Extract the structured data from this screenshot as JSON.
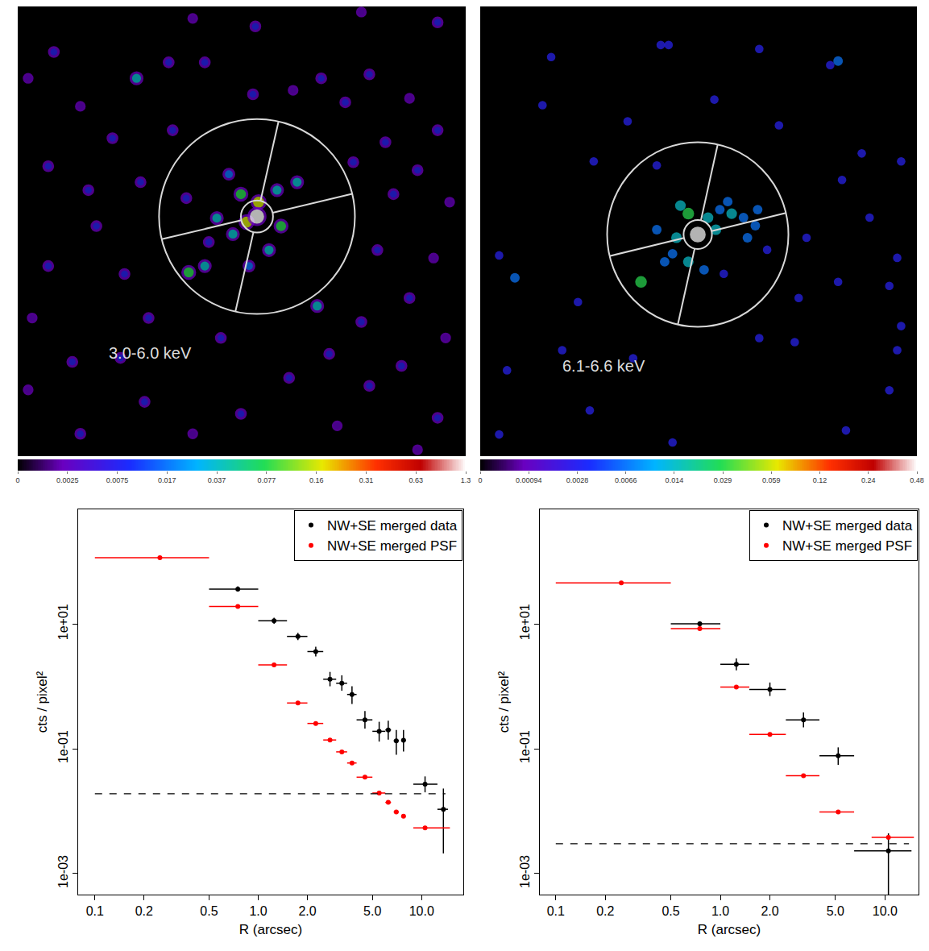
{
  "chart_data": [
    {
      "type": "image",
      "label": "3.0-6.0 keV",
      "marker": "ring",
      "xlim": [
        0,
        558
      ],
      "ylim": [
        563,
        0
      ],
      "tick_labels": false,
      "sources": {
        "x": [
          45,
          218,
          296,
          428,
          523,
          188,
          233,
          78,
          118,
          193,
          13,
          38,
          88,
          153,
          210,
          293,
          343,
          378,
          408,
          438,
          488,
          523,
          458,
          498,
          538,
          468,
          448,
          518,
          488,
          428,
          533,
          478,
          438,
          523,
          398,
          338,
          278,
          218,
          158,
          128,
          68,
          18,
          38,
          98,
          133,
          13,
          78,
          163,
          388,
          498,
          418,
          238,
          253,
          278,
          323,
          328,
          268,
          248,
          313,
          288,
          263,
          348,
          233,
          213,
          373,
          148,
          300,
          285,
          298
        ],
        "y": [
          57,
          15,
          25,
          7,
          20,
          70,
          70,
          125,
          165,
          155,
          90,
          200,
          230,
          220,
          240,
          110,
          105,
          90,
          120,
          85,
          115,
          155,
          170,
          205,
          245,
          235,
          305,
          315,
          365,
          395,
          415,
          450,
          475,
          515,
          525,
          465,
          510,
          535,
          495,
          440,
          445,
          390,
          325,
          275,
          335,
          480,
          535,
          390,
          435,
          555,
          195,
          295,
          415,
          235,
          230,
          275,
          285,
          265,
          305,
          325,
          210,
          220,
          325,
          333,
          375,
          90,
          245,
          270,
          263
        ],
        "values": [
          0.0075,
          0.0025,
          0.0075,
          0.0025,
          0.0075,
          0.0075,
          0.0075,
          0.0025,
          0.0075,
          0.0075,
          0.0025,
          0.0075,
          0.0075,
          0.0075,
          0.0075,
          0.0075,
          0.0025,
          0.0075,
          0.0075,
          0.0075,
          0.0025,
          0.0075,
          0.0075,
          0.0075,
          0.0025,
          0.0075,
          0.0075,
          0.0025,
          0.0075,
          0.0075,
          0.0025,
          0.0075,
          0.0075,
          0.0075,
          0.0025,
          0.0075,
          0.0075,
          0.0025,
          0.0075,
          0.0075,
          0.0075,
          0.0025,
          0.0075,
          0.0075,
          0.0075,
          0.0025,
          0.0075,
          0.0075,
          0.0075,
          0.0025,
          0.0075,
          0.0075,
          0.0075,
          0.077,
          0.037,
          0.077,
          0.037,
          0.037,
          0.037,
          0.017,
          0.017,
          0.037,
          0.037,
          0.077,
          0.037,
          0.037,
          0.16,
          0.16,
          1.3
        ]
      },
      "colorbar": {
        "ticks": [
          0,
          0.0025,
          0.0075,
          0.017,
          0.037,
          0.077,
          0.16,
          0.31,
          0.63,
          1.3
        ]
      }
    },
    {
      "type": "image",
      "label": "6.1-6.6 keV",
      "marker": "circle",
      "xlim": [
        0,
        554
      ],
      "ylim": [
        560,
        0
      ],
      "tick_labels": false,
      "sources": {
        "x": [
          90,
          229,
          239,
          354,
          444,
          454,
          79,
          187,
          297,
          379,
          484,
          534,
          144,
          224,
          459,
          414,
          24,
          364,
          494,
          529,
          44,
          454,
          519,
          124,
          404,
          534,
          104,
          354,
          399,
          529,
          194,
          139,
          34,
          244,
          519,
          464,
          24,
          309,
          254,
          264,
          249,
          289,
          304,
          319,
          334,
          349,
          244,
          234,
          264,
          284,
          204,
          314,
          299,
          224,
          339,
          352,
          276
        ],
        "y": [
          63,
          48,
          48,
          53,
          73,
          68,
          123,
          143,
          116,
          148,
          183,
          193,
          193,
          198,
          216,
          288,
          310,
          303,
          263,
          313,
          338,
          343,
          348,
          368,
          363,
          398,
          428,
          413,
          418,
          428,
          438,
          503,
          453,
          543,
          478,
          528,
          533,
          333,
          248,
          258,
          288,
          263,
          253,
          258,
          263,
          273,
          308,
          318,
          318,
          328,
          343,
          243,
          278,
          278,
          288,
          253,
          284
        ],
        "values": [
          0.0028,
          0.0028,
          0.0028,
          0.0028,
          0.0028,
          0.0066,
          0.0028,
          0.0028,
          0.0028,
          0.0028,
          0.0028,
          0.0028,
          0.0028,
          0.0028,
          0.0028,
          0.0028,
          0.0028,
          0.0028,
          0.0028,
          0.0028,
          0.0066,
          0.0028,
          0.0028,
          0.0028,
          0.0028,
          0.0028,
          0.0028,
          0.0028,
          0.0028,
          0.0028,
          0.0028,
          0.0028,
          0.0028,
          0.0028,
          0.0028,
          0.0028,
          0.0028,
          0.0028,
          0.014,
          0.029,
          0.014,
          0.014,
          0.0066,
          0.014,
          0.0066,
          0.0066,
          0.0066,
          0.0066,
          0.014,
          0.0066,
          0.029,
          0.0066,
          0.014,
          0.0066,
          0.0066,
          0.0066,
          0.48
        ]
      },
      "colorbar": {
        "ticks": [
          0,
          0.00094,
          0.0028,
          0.0066,
          0.014,
          0.029,
          0.059,
          0.12,
          0.24,
          0.48
        ]
      }
    },
    {
      "type": "scatter",
      "log": true,
      "legend": "top right",
      "xlim": [
        0.079,
        18
      ],
      "ylim": [
        0.00046,
        684
      ],
      "xticks": [
        0.1,
        0.2,
        0.5,
        {
          "value": 1,
          "label": "1.0"
        },
        {
          "value": 2,
          "label": "2.0"
        },
        {
          "value": 5,
          "label": "5.0"
        },
        {
          "value": 10,
          "label": "10.0"
        }
      ],
      "yticks": [
        {
          "value": 0.001,
          "label": "1e-03"
        },
        {
          "value": 0.1,
          "label": "1e-01"
        },
        {
          "value": 10,
          "label": "1e+01"
        }
      ],
      "x_label": "R (arcsec)",
      "y_label": "cts / pixel²",
      "series": [
        {
          "name": "NW+SE merged data",
          "color": "#000000",
          "x": [
            0.75,
            1.25,
            1.75,
            2.25,
            2.75,
            3.25,
            3.75,
            4.5,
            5.5,
            6.25,
            7.0,
            7.75,
            10.5,
            13.6
          ],
          "x_low": [
            0.5,
            1.0,
            1.5,
            2.0,
            2.5,
            3.0,
            3.5,
            4.0,
            5.0,
            6.0,
            6.75,
            7.5,
            8.9,
            12.5
          ],
          "x_high": [
            1.0,
            1.5,
            2.0,
            2.5,
            3.0,
            3.5,
            4.0,
            5.0,
            6.0,
            6.5,
            7.25,
            8.0,
            12.5,
            14.5
          ],
          "values": [
            36,
            11.2,
            6.3,
            3.6,
            1.3,
            1.12,
            0.74,
            0.29,
            0.19,
            0.2,
            0.134,
            0.137,
            0.027,
            0.0107
          ],
          "y_low": [
            33,
            10,
            5.5,
            3.0,
            1.0,
            0.85,
            0.52,
            0.21,
            0.13,
            0.14,
            0.08,
            0.09,
            0.02,
            0.0021
          ],
          "y_high": [
            40,
            12.5,
            7.2,
            4.3,
            1.7,
            1.5,
            1.0,
            0.4,
            0.27,
            0.28,
            0.2,
            0.2,
            0.036,
            0.023
          ]
        },
        {
          "name": "NW+SE merged PSF",
          "color": "#ff0000",
          "x": [
            0.25,
            0.75,
            1.25,
            1.75,
            2.25,
            2.75,
            3.25,
            3.75,
            4.5,
            5.5,
            6.25,
            7.0,
            7.75,
            10.5
          ],
          "x_low": [
            0.1,
            0.5,
            1.0,
            1.5,
            2.0,
            2.5,
            3.0,
            3.5,
            4.0,
            5.0,
            6.0,
            6.75,
            7.5,
            8.9
          ],
          "x_high": [
            0.5,
            1.0,
            1.5,
            2.0,
            2.5,
            3.0,
            3.5,
            4.0,
            5.0,
            6.0,
            6.5,
            7.25,
            8.0,
            14.9
          ],
          "values": [
            115,
            19,
            2.2,
            0.54,
            0.254,
            0.138,
            0.089,
            0.059,
            0.035,
            0.0195,
            0.0138,
            0.0097,
            0.0083,
            0.0054
          ]
        }
      ],
      "background": {
        "value": 0.019,
        "x": [
          0.1,
          14
        ],
        "line_style": "dashed",
        "color": "#000000"
      }
    },
    {
      "type": "scatter",
      "log": true,
      "legend": "top right",
      "xlim": [
        0.08,
        16
      ],
      "ylim": [
        0.00046,
        684
      ],
      "xticks": [
        0.1,
        0.2,
        0.5,
        {
          "value": 1,
          "label": "1.0"
        },
        {
          "value": 2,
          "label": "2.0"
        },
        {
          "value": 5,
          "label": "5.0"
        },
        {
          "value": 10,
          "label": "10.0"
        }
      ],
      "yticks": [
        {
          "value": 0.001,
          "label": "1e-03"
        },
        {
          "value": 0.1,
          "label": "1e-01"
        },
        {
          "value": 10,
          "label": "1e+01"
        }
      ],
      "x_label": "R (arcsec)",
      "y_label": "cts / pixel²",
      "series": [
        {
          "name": "NW+SE merged data",
          "color": "#000000",
          "x": [
            0.75,
            1.25,
            2.0,
            3.2,
            5.2,
            10.5
          ],
          "x_low": [
            0.5,
            1.0,
            1.5,
            2.5,
            4.0,
            6.5
          ],
          "x_high": [
            1.0,
            1.5,
            2.5,
            4.0,
            6.5,
            14.5
          ],
          "values": [
            10,
            2.26,
            0.89,
            0.29,
            0.077,
            0.0023
          ],
          "y_low": [
            9,
            1.8,
            0.7,
            0.22,
            0.055,
            0.0003
          ],
          "y_high": [
            11,
            2.8,
            1.15,
            0.38,
            0.105,
            0.0044
          ]
        },
        {
          "name": "NW+SE merged PSF",
          "color": "#ff0000",
          "x": [
            0.25,
            0.75,
            1.25,
            2.0,
            3.2,
            5.2,
            10.5
          ],
          "x_low": [
            0.1,
            0.5,
            1.0,
            1.5,
            2.5,
            4.0,
            8.3
          ],
          "x_high": [
            0.5,
            1.0,
            1.5,
            2.5,
            4.0,
            6.5,
            15
          ],
          "values": [
            45.5,
            8.4,
            0.97,
            0.17,
            0.037,
            0.0097,
            0.0038
          ]
        }
      ],
      "background": {
        "value": 0.003,
        "x": [
          0.1,
          14
        ],
        "line_style": "dashed",
        "color": "#000000"
      }
    }
  ]
}
